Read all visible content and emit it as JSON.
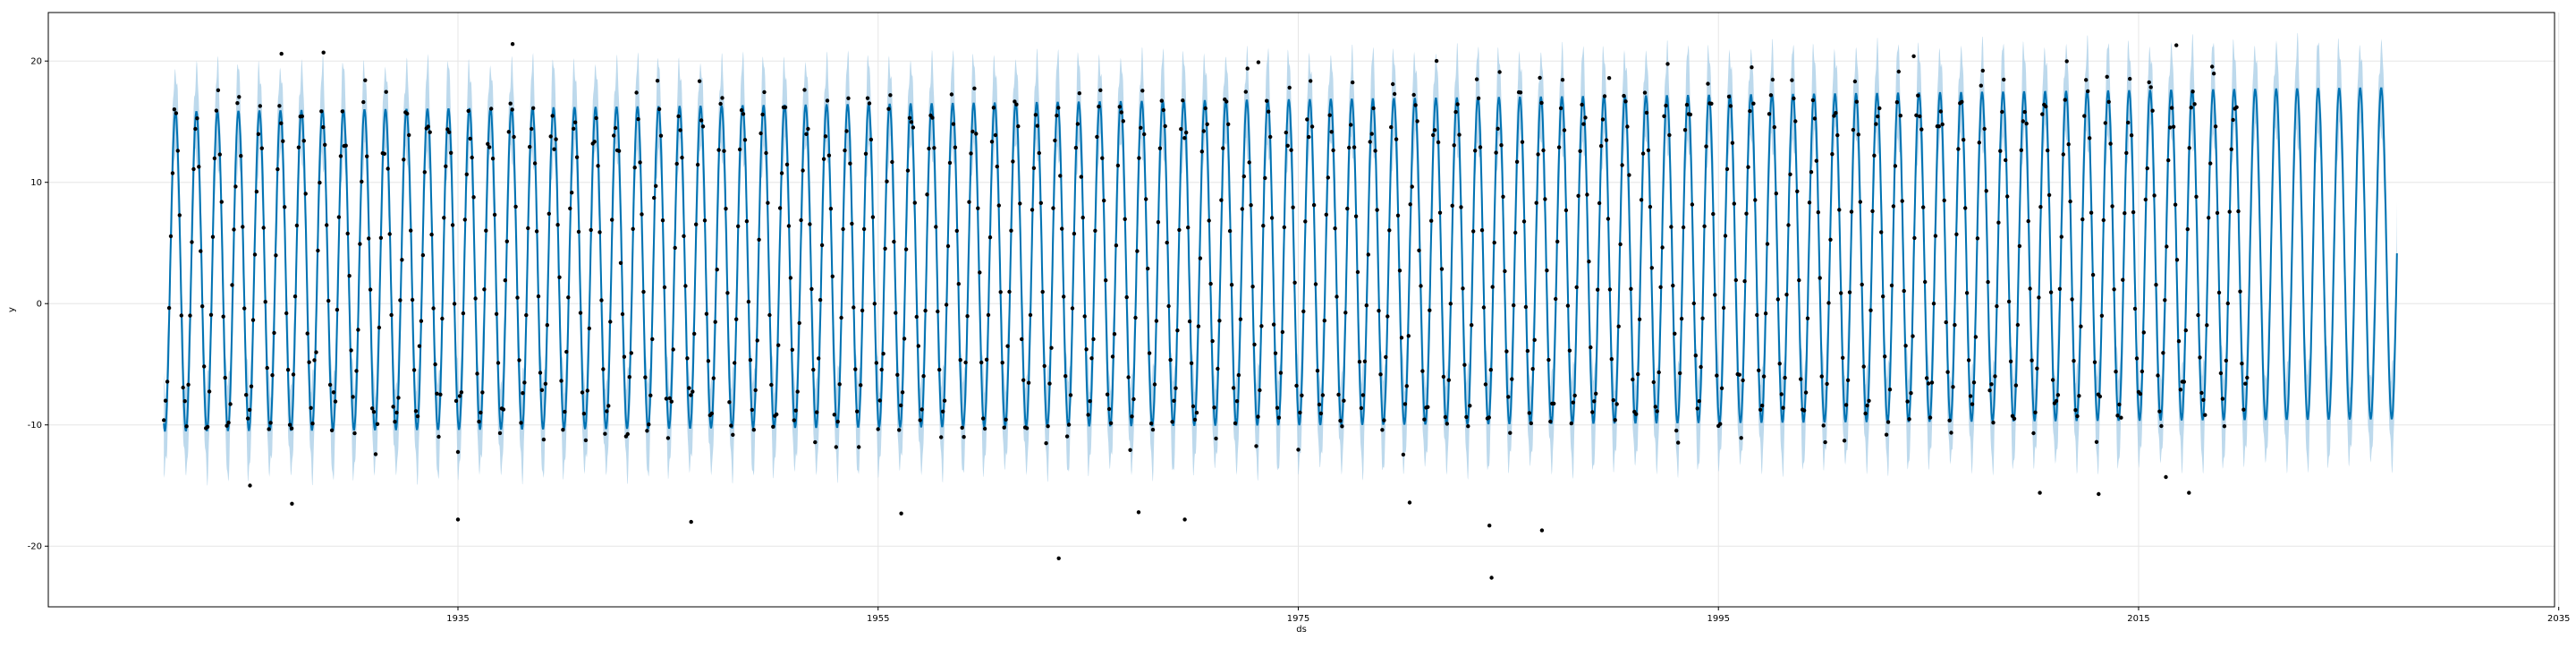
{
  "chart_data": {
    "type": "line",
    "title": "",
    "xlabel": "ds",
    "ylabel": "y",
    "xlim": [
      1915.5,
      2034.8
    ],
    "ylim": [
      -25,
      24
    ],
    "grid": true,
    "x_ticks": [
      {
        "value": 1935,
        "label": "1935"
      },
      {
        "value": 1955,
        "label": "1955"
      },
      {
        "value": 1975,
        "label": "1975"
      },
      {
        "value": 1995,
        "label": "1995"
      },
      {
        "value": 2015,
        "label": "2015"
      },
      {
        "value": 2035,
        "label": "2035"
      }
    ],
    "y_ticks": [
      {
        "value": 20,
        "label": "20"
      },
      {
        "value": 10,
        "label": "10"
      },
      {
        "value": 0,
        "label": "0"
      },
      {
        "value": -10,
        "label": "-10"
      },
      {
        "value": -20,
        "label": "-20"
      }
    ],
    "colors": {
      "forecast_line": "#0072B2",
      "uncertainty_band": "#A7CCE5",
      "observations": "#000000",
      "grid": "#E6E6E6",
      "axes": "#000000"
    },
    "series": [
      {
        "kind": "forecast",
        "description": "seasonal yearly cycle, trough about -10.5 rising to about -9.5, peak about 15.8 rising to about 17.8",
        "x_start": 1921.0,
        "x_end": 2027.3,
        "trough_start": -10.5,
        "trough_end": -9.5,
        "peak_start": 15.8,
        "peak_end": 17.8,
        "band_halfwidth": 3.6
      },
      {
        "kind": "observations",
        "x_start": 1921.0,
        "x_end": 2020.2,
        "outliers": [
          {
            "x": 1926.6,
            "y": 20.6
          },
          {
            "x": 1928.6,
            "y": 20.7
          },
          {
            "x": 1937.6,
            "y": 21.4
          },
          {
            "x": 1973.1,
            "y": 19.9
          },
          {
            "x": 1989.8,
            "y": 18.6
          },
          {
            "x": 2016.8,
            "y": 21.3
          },
          {
            "x": 2004.3,
            "y": 20.4
          },
          {
            "x": 1925.1,
            "y": -15.0
          },
          {
            "x": 1927.1,
            "y": -16.5
          },
          {
            "x": 1935.0,
            "y": -17.8
          },
          {
            "x": 1946.1,
            "y": -18.0
          },
          {
            "x": 1963.6,
            "y": -21.0
          },
          {
            "x": 1967.4,
            "y": -17.2
          },
          {
            "x": 1969.6,
            "y": -17.8
          },
          {
            "x": 1984.1,
            "y": -18.3
          },
          {
            "x": 1984.2,
            "y": -22.6
          },
          {
            "x": 1986.6,
            "y": -18.7
          },
          {
            "x": 1956.1,
            "y": -17.3
          },
          {
            "x": 1980.3,
            "y": -16.4
          },
          {
            "x": 2013.1,
            "y": -15.7
          },
          {
            "x": 2017.4,
            "y": -15.6
          },
          {
            "x": 2016.3,
            "y": -14.3
          },
          {
            "x": 2010.3,
            "y": -15.6
          }
        ]
      }
    ]
  }
}
